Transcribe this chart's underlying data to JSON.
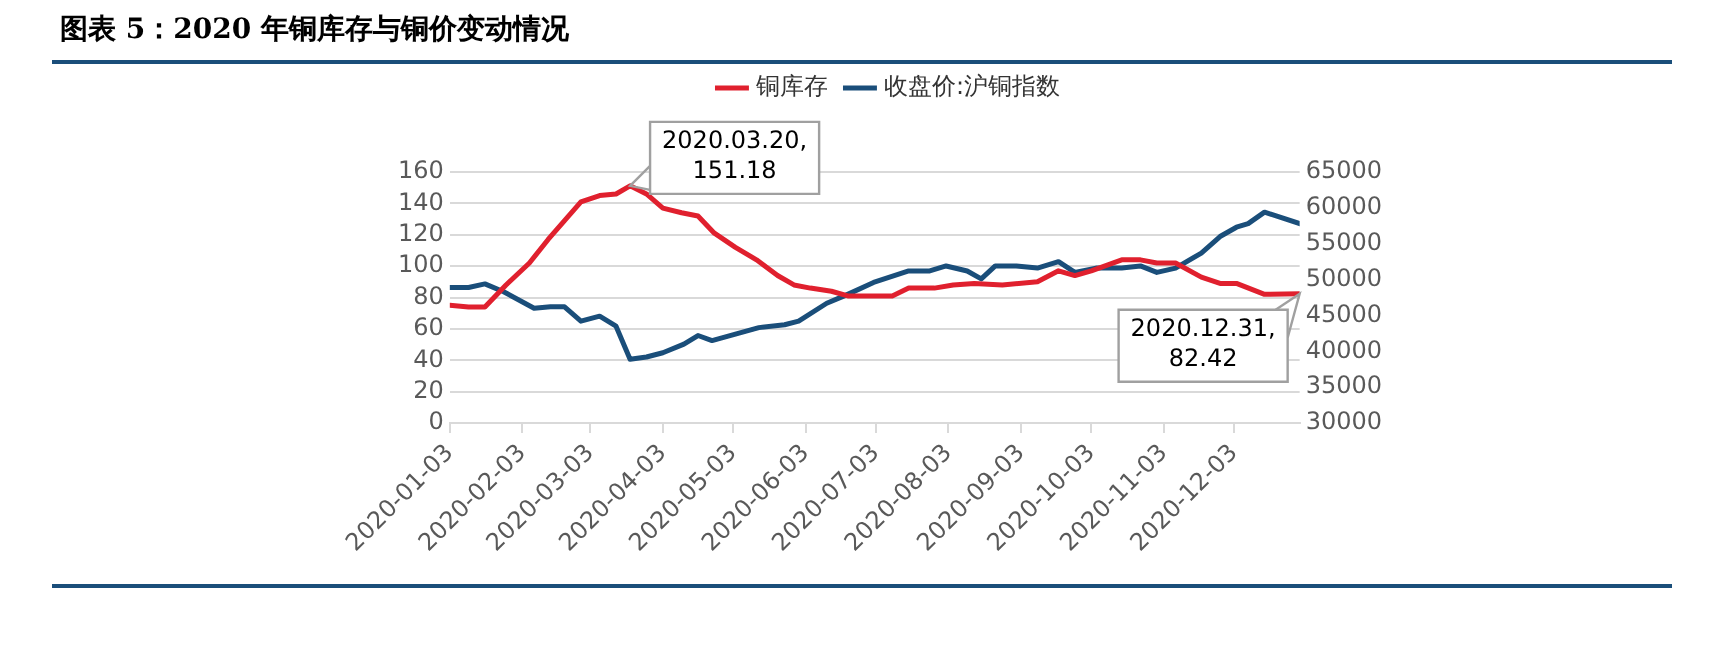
{
  "chart_data": {
    "type": "line",
    "title": "图表 5：2020 年铜库存与铜价变动情况",
    "xlim": [
      "2020-01-03",
      "2020-12-31"
    ],
    "xticks": [
      "2020-01-03",
      "2020-02-03",
      "2020-03-03",
      "2020-04-03",
      "2020-05-03",
      "2020-06-03",
      "2020-07-03",
      "2020-08-03",
      "2020-09-03",
      "2020-10-03",
      "2020-11-03",
      "2020-12-03"
    ],
    "ylim": [
      0,
      160
    ],
    "yticks": [
      0,
      20,
      40,
      60,
      80,
      100,
      120,
      140,
      160
    ],
    "y2lim": [
      30000,
      65000
    ],
    "y2ticks": [
      30000,
      35000,
      40000,
      45000,
      50000,
      55000,
      60000,
      65000
    ],
    "grid": "y",
    "legend": "top",
    "marker": "none",
    "line_style": "solid",
    "series": [
      {
        "name": "铜库存",
        "color": "#e0202e",
        "x": [
          "2020-01-03",
          "2020-01-11",
          "2020-01-18",
          "2020-01-27",
          "2020-02-06",
          "2020-02-14",
          "2020-02-21",
          "2020-02-28",
          "2020-03-07",
          "2020-03-14",
          "2020-03-20",
          "2020-03-27",
          "2020-04-03",
          "2020-04-11",
          "2020-04-18",
          "2020-04-25",
          "2020-05-04",
          "2020-05-13",
          "2020-05-22",
          "2020-05-29",
          "2020-06-05",
          "2020-06-14",
          "2020-06-21",
          "2020-07-01",
          "2020-07-10",
          "2020-07-17",
          "2020-07-28",
          "2020-08-05",
          "2020-08-14",
          "2020-08-26",
          "2020-09-10",
          "2020-09-19",
          "2020-09-26",
          "2020-10-03",
          "2020-10-16",
          "2020-10-24",
          "2020-10-31",
          "2020-11-08",
          "2020-11-19",
          "2020-11-27",
          "2020-12-04",
          "2020-12-16",
          "2020-12-31"
        ],
        "values": [
          75,
          74,
          74,
          88,
          102,
          117,
          129,
          141,
          145,
          146,
          151.18,
          146,
          137,
          134,
          132,
          121,
          112,
          104,
          94,
          88,
          86,
          84,
          81,
          81,
          81,
          86,
          86,
          88,
          89,
          88,
          90,
          97,
          94,
          97,
          104,
          104,
          102,
          102,
          93,
          89,
          89,
          82,
          82.42
        ]
      },
      {
        "name": "收盘价:沪铜指数",
        "color": "#1a4e7a",
        "axis": "y2",
        "x": [
          "2020-01-03",
          "2020-01-11",
          "2020-01-18",
          "2020-01-26",
          "2020-02-08",
          "2020-02-15",
          "2020-02-21",
          "2020-02-28",
          "2020-03-07",
          "2020-03-14",
          "2020-03-20",
          "2020-03-27",
          "2020-04-03",
          "2020-04-12",
          "2020-04-18",
          "2020-04-24",
          "2020-05-04",
          "2020-05-14",
          "2020-05-25",
          "2020-05-31",
          "2020-06-12",
          "2020-06-20",
          "2020-07-02",
          "2020-07-17",
          "2020-07-26",
          "2020-08-02",
          "2020-08-11",
          "2020-08-17",
          "2020-08-23",
          "2020-09-01",
          "2020-09-10",
          "2020-09-19",
          "2020-09-26",
          "2020-10-05",
          "2020-10-16",
          "2020-10-24",
          "2020-10-31",
          "2020-11-08",
          "2020-11-19",
          "2020-11-27",
          "2020-12-04",
          "2020-12-09",
          "2020-12-16",
          "2020-12-31"
        ],
        "values": [
          48900,
          48900,
          49400,
          48300,
          46000,
          46200,
          46200,
          44200,
          44900,
          43500,
          38900,
          39200,
          39800,
          41000,
          42200,
          41500,
          42400,
          43300,
          43700,
          44200,
          46700,
          47800,
          49600,
          51200,
          51200,
          51900,
          51200,
          50100,
          51900,
          51900,
          51600,
          52500,
          51000,
          51600,
          51600,
          51900,
          51000,
          51600,
          53700,
          56000,
          57300,
          57800,
          59400,
          57800
        ]
      }
    ],
    "annotations": [
      {
        "text": "2020.03.20,\n151.18",
        "x": "2020-03-20",
        "y": 151.18
      },
      {
        "text": "2020.12.31,\n82.42",
        "x": "2020-12-31",
        "y": 82.42
      }
    ]
  }
}
